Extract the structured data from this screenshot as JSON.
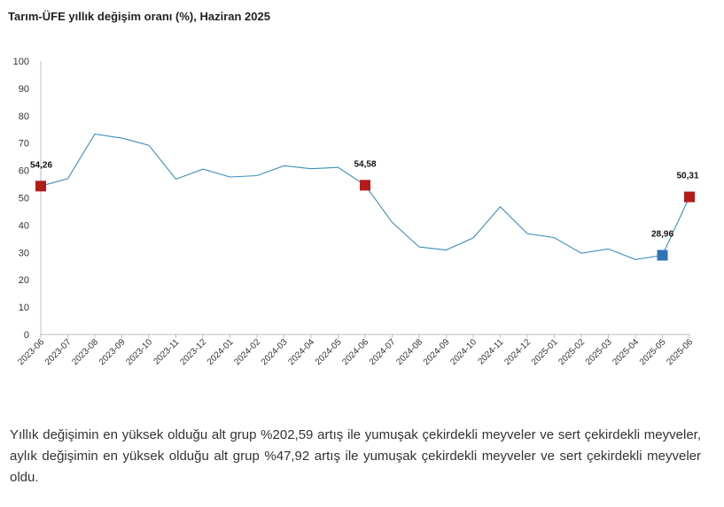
{
  "chart_data": {
    "type": "line",
    "title": "Tarım-ÜFE yıllık değişim oranı (%), Haziran 2025",
    "xlabel": "",
    "ylabel": "",
    "ylim": [
      0,
      100
    ],
    "yticks": [
      0,
      10,
      20,
      30,
      40,
      50,
      60,
      70,
      80,
      90,
      100
    ],
    "grid": false,
    "legend": "none",
    "categories": [
      "2023-06",
      "2023-07",
      "2023-08",
      "2023-09",
      "2023-10",
      "2023-11",
      "2023-12",
      "2024-01",
      "2024-02",
      "2024-03",
      "2024-04",
      "2024-05",
      "2024-06",
      "2024-07",
      "2024-08",
      "2024-09",
      "2024-10",
      "2024-11",
      "2024-12",
      "2025-01",
      "2025-02",
      "2025-03",
      "2025-04",
      "2025-05",
      "2025-06"
    ],
    "series": [
      {
        "values": [
          54.26,
          57.0,
          73.3,
          71.8,
          69.2,
          56.8,
          60.5,
          57.6,
          58.1,
          61.7,
          60.6,
          61.1,
          54.58,
          41.0,
          32.0,
          30.9,
          35.3,
          46.7,
          36.9,
          35.4,
          29.7,
          31.3,
          27.4,
          28.96,
          50.31
        ],
        "color": "#3c8dbc"
      }
    ],
    "annotations": [
      {
        "index": 0,
        "label": "54,26",
        "color": "#b31b1b"
      },
      {
        "index": 12,
        "label": "54,58",
        "color": "#b31b1b"
      },
      {
        "index": 23,
        "label": "28,96",
        "color": "#2e75b6"
      },
      {
        "index": 24,
        "label": "50,31",
        "color": "#b31b1b"
      }
    ]
  },
  "description": "Yıllık değişimin en yüksek olduğu alt grup %202,59 artış ile yumuşak çekirdekli meyveler ve sert çekirdekli meyveler, aylık değişimin en yüksek olduğu alt grup %47,92 artış ile yumuşak çekirdekli meyveler ve sert çekirdekli meyveler oldu."
}
